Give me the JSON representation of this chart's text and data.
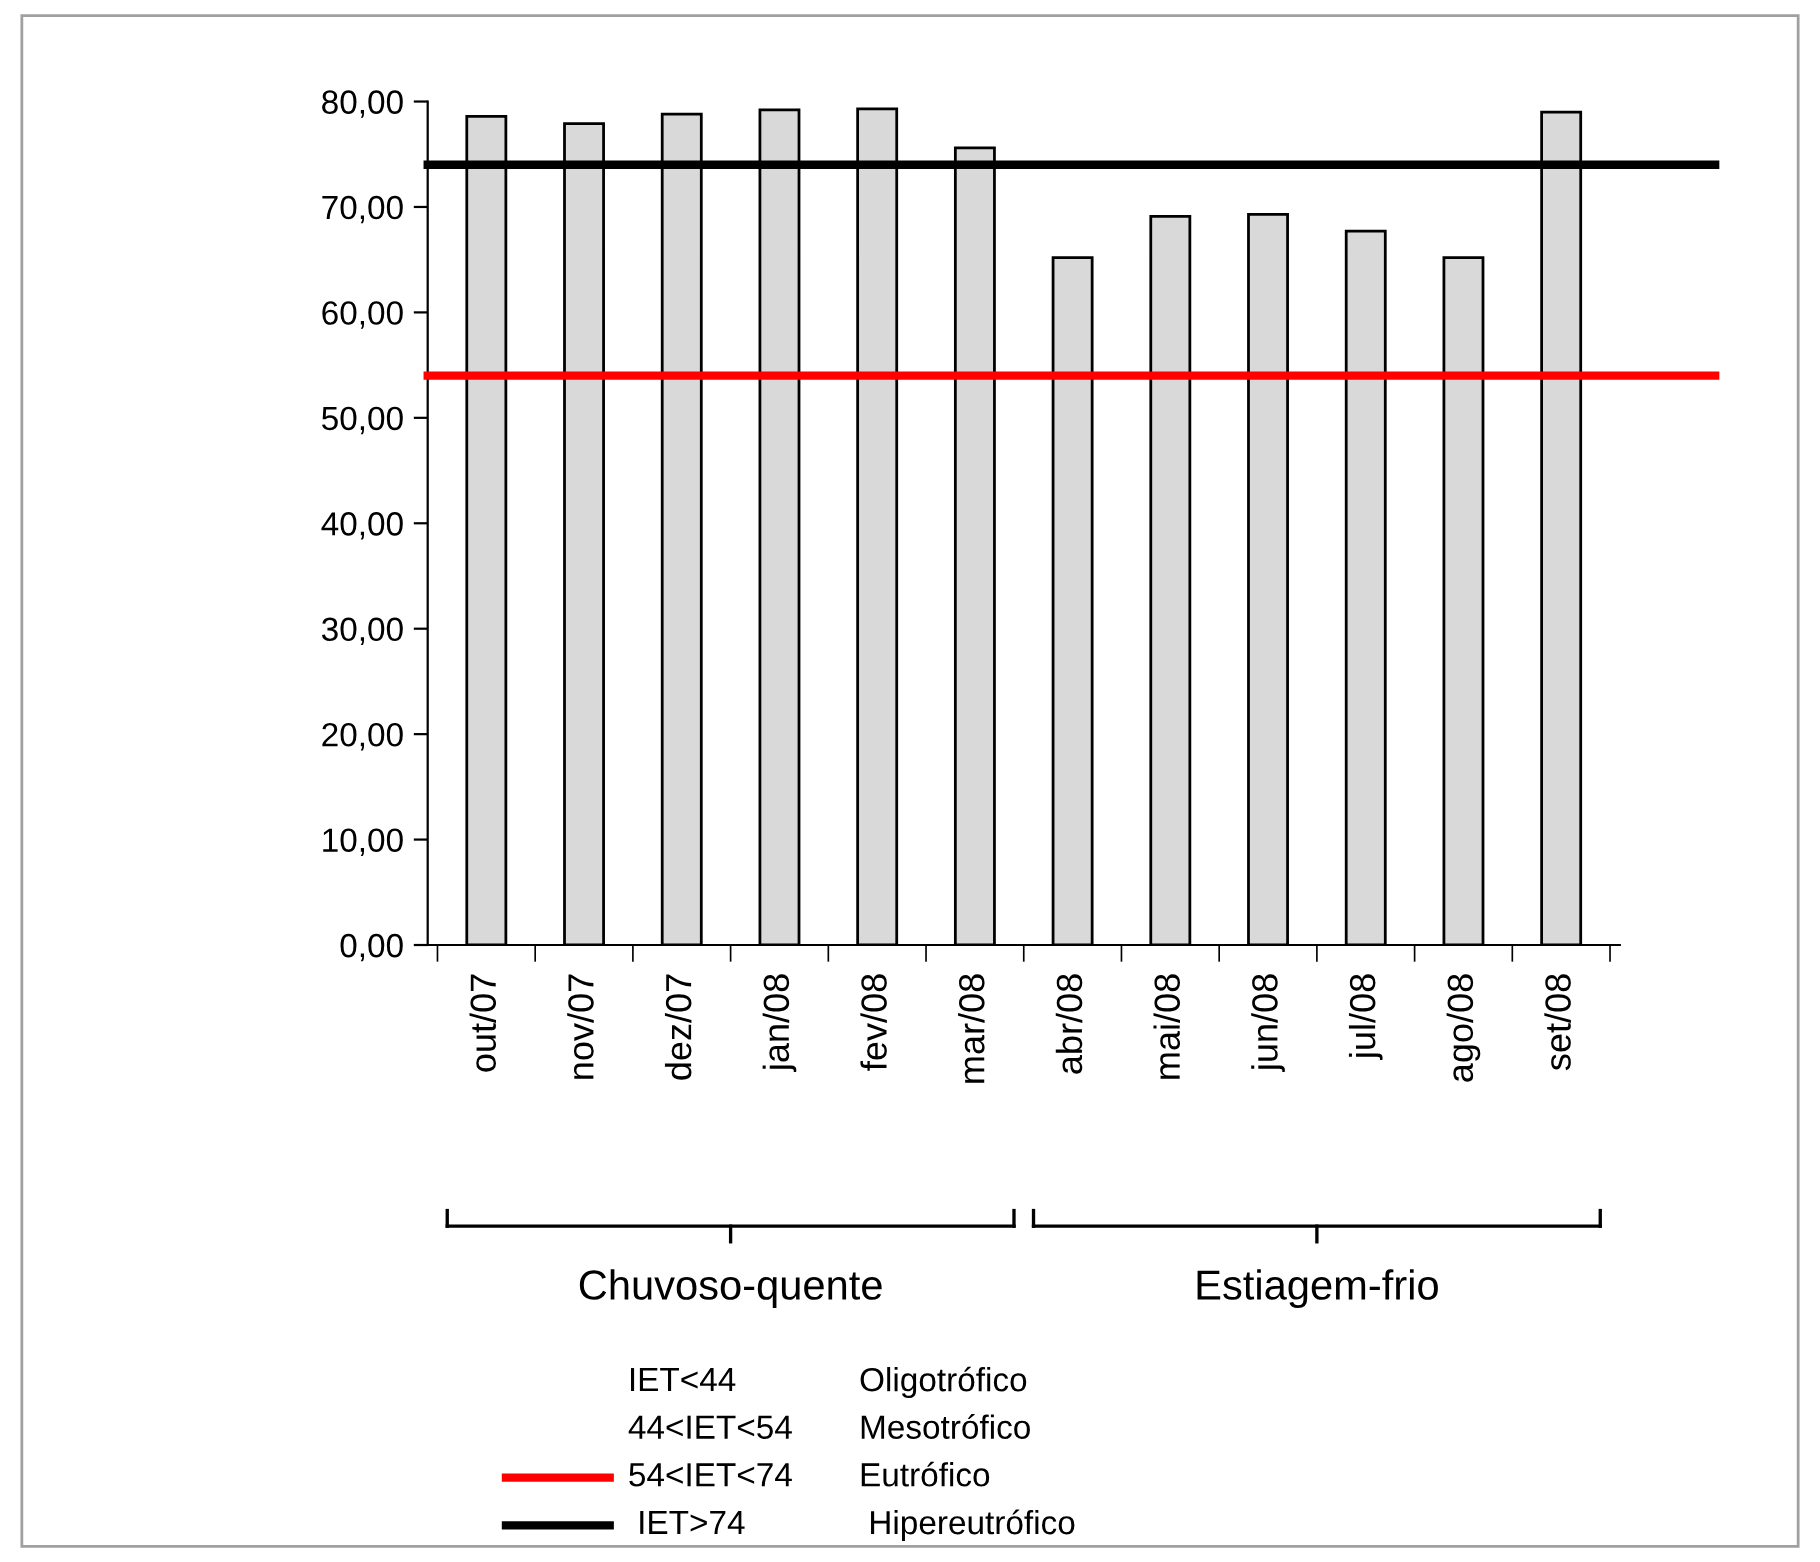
{
  "chart_data": {
    "type": "bar",
    "categories": [
      "out/07",
      "nov/07",
      "dez/07",
      "jan/08",
      "fev/08",
      "mar/08",
      "abr/08",
      "mai/08",
      "jun/08",
      "jul/08",
      "ago/08",
      "set/08"
    ],
    "values": [
      78.6,
      77.9,
      78.8,
      79.2,
      79.3,
      75.6,
      65.2,
      69.1,
      69.3,
      67.7,
      65.2,
      79.0
    ],
    "color": "#d9d9d9",
    "legend": "bottom",
    "ylim": [
      0,
      80
    ],
    "yticks": [
      {
        "value": 0,
        "label": "0,00"
      },
      {
        "value": 10,
        "label": "10,00"
      },
      {
        "value": 20,
        "label": "20,00"
      },
      {
        "value": 30,
        "label": "30,00"
      },
      {
        "value": 40,
        "label": "40,00"
      },
      {
        "value": 50,
        "label": "50,00"
      },
      {
        "value": 60,
        "label": "60,00"
      },
      {
        "value": 70,
        "label": "70,00"
      },
      {
        "value": 80,
        "label": "80,00"
      }
    ],
    "ref_lines": [
      {
        "axis": "y",
        "value": 54,
        "label": "54<IET<74",
        "color": "#ff0000"
      },
      {
        "axis": "y",
        "value": 74,
        "label": " IET>74",
        "color": "#000000"
      }
    ],
    "annotations": [
      "Chuvoso-quente",
      "Estiagem-frio",
      "IET<44",
      "Oligotrófico",
      "44<IET<54",
      "Mesotrófico",
      "Eutrófico",
      " Hipereutrófico"
    ]
  }
}
